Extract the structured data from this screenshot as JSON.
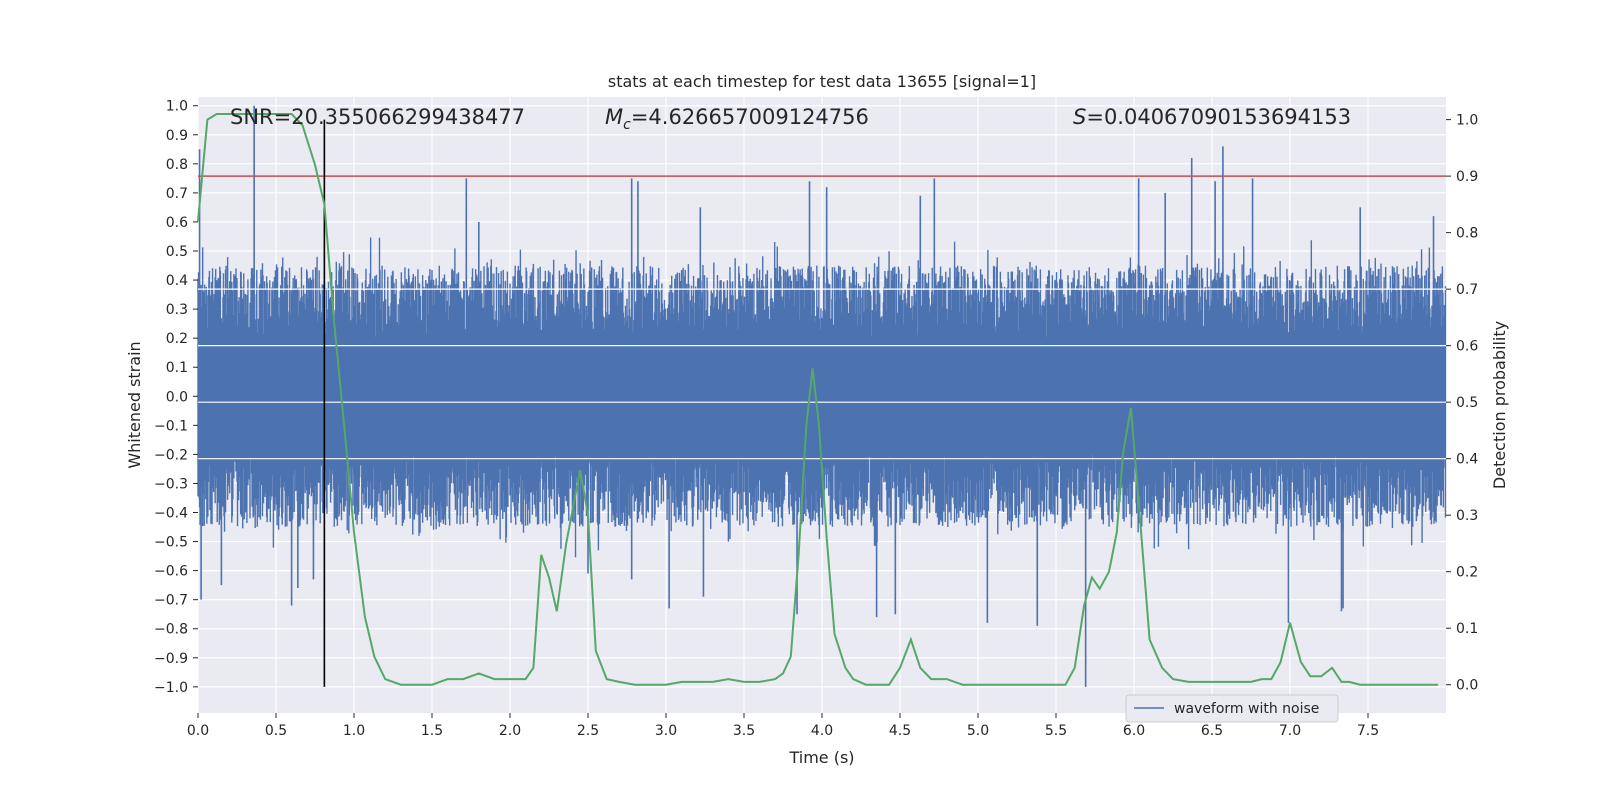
{
  "chart_data": {
    "type": "line",
    "title": "stats at each timestep for test data 13655 [signal=1]",
    "xlabel": "Time (s)",
    "ylabel_left": "Whitened strain",
    "ylabel_right": "Detection probability",
    "xlim": [
      0,
      8
    ],
    "ylim_left": [
      -1.09,
      1.03
    ],
    "ylim_right": [
      -0.05,
      1.04
    ],
    "x_ticks": [
      0.0,
      0.5,
      1.0,
      1.5,
      2.0,
      2.5,
      3.0,
      3.5,
      4.0,
      4.5,
      5.0,
      5.5,
      6.0,
      6.5,
      7.0,
      7.5
    ],
    "x_tick_labels": [
      "0.0",
      "0.5",
      "1.0",
      "1.5",
      "2.0",
      "2.5",
      "3.0",
      "3.5",
      "4.0",
      "4.5",
      "5.0",
      "5.5",
      "6.0",
      "6.5",
      "7.0",
      "7.5"
    ],
    "y_left_ticks": [
      1.0,
      0.9,
      0.8,
      0.7,
      0.6,
      0.5,
      0.4,
      0.3,
      0.2,
      0.1,
      0.0,
      -0.1,
      -0.2,
      -0.3,
      -0.4,
      -0.5,
      -0.6,
      -0.7,
      -0.8,
      -0.9,
      -1.0
    ],
    "y_left_tick_labels": [
      "1.0",
      "0.9",
      "0.8",
      "0.7",
      "0.6",
      "0.5",
      "0.4",
      "0.3",
      "0.2",
      "0.1",
      "0.0",
      "−0.1",
      "−0.2",
      "−0.3",
      "−0.4",
      "−0.5",
      "−0.6",
      "−0.7",
      "−0.8",
      "−0.9",
      "−1.0"
    ],
    "y_right_ticks": [
      1.0,
      0.9,
      0.8,
      0.7,
      0.6,
      0.5,
      0.4,
      0.3,
      0.2,
      0.1,
      0.0
    ],
    "y_right_tick_labels": [
      "1.0",
      "0.9",
      "0.8",
      "0.7",
      "0.6",
      "0.5",
      "0.4",
      "0.3",
      "0.2",
      "0.1",
      "0.0"
    ],
    "grid": true,
    "legend": {
      "position": "lower-right",
      "entries": [
        "waveform with noise"
      ]
    },
    "annotations": {
      "snr": "SNR=20.355066299438477",
      "mc_symbol": "M",
      "mc_sub": "c",
      "mc_value": "=4.626657009124756",
      "s_symbol": "S",
      "s_value": "=0.04067090153694153"
    },
    "threshold": {
      "value": 0.9,
      "axis": "right",
      "color": "#c44e52"
    },
    "event_marker": {
      "x": 0.81,
      "color": "#000000"
    },
    "waveform": {
      "name": "waveform with noise",
      "color": "#4c72b0",
      "envelope_pos": 0.45,
      "envelope_neg": -0.45,
      "spikes": [
        {
          "x": 0.01,
          "y": 0.85
        },
        {
          "x": 0.02,
          "y": -0.7
        },
        {
          "x": 0.36,
          "y": 1.0
        },
        {
          "x": 0.15,
          "y": -0.65
        },
        {
          "x": 0.6,
          "y": -0.72
        },
        {
          "x": 0.64,
          "y": -0.66
        },
        {
          "x": 0.74,
          "y": -0.63
        },
        {
          "x": 1.72,
          "y": 0.75
        },
        {
          "x": 1.8,
          "y": 0.6
        },
        {
          "x": 2.5,
          "y": -0.61
        },
        {
          "x": 2.78,
          "y": 0.75
        },
        {
          "x": 2.82,
          "y": 0.74
        },
        {
          "x": 2.78,
          "y": -0.63
        },
        {
          "x": 3.02,
          "y": -0.73
        },
        {
          "x": 3.22,
          "y": 0.65
        },
        {
          "x": 3.24,
          "y": -0.69
        },
        {
          "x": 3.92,
          "y": 0.74
        },
        {
          "x": 3.84,
          "y": -0.75
        },
        {
          "x": 4.03,
          "y": 0.72
        },
        {
          "x": 4.35,
          "y": -0.76
        },
        {
          "x": 4.47,
          "y": -0.75
        },
        {
          "x": 4.72,
          "y": 0.75
        },
        {
          "x": 4.63,
          "y": 0.69
        },
        {
          "x": 5.06,
          "y": -0.78
        },
        {
          "x": 5.38,
          "y": -0.79
        },
        {
          "x": 5.69,
          "y": -1.0
        },
        {
          "x": 6.03,
          "y": 0.75
        },
        {
          "x": 6.37,
          "y": 0.82
        },
        {
          "x": 6.57,
          "y": 0.86
        },
        {
          "x": 6.76,
          "y": 0.75
        },
        {
          "x": 6.99,
          "y": -0.78
        },
        {
          "x": 7.33,
          "y": -0.74
        },
        {
          "x": 7.34,
          "y": -0.73
        },
        {
          "x": 7.45,
          "y": 0.65
        },
        {
          "x": 7.92,
          "y": 0.62
        },
        {
          "x": 6.52,
          "y": 0.74
        },
        {
          "x": 6.2,
          "y": 0.7
        }
      ]
    },
    "probability": {
      "color": "#55a868",
      "x": [
        0.0,
        0.06,
        0.12,
        0.2,
        0.3,
        0.4,
        0.5,
        0.6,
        0.67,
        0.75,
        0.81,
        0.87,
        0.94,
        1.0,
        1.07,
        1.13,
        1.2,
        1.3,
        1.5,
        1.6,
        1.7,
        1.8,
        1.9,
        2.0,
        2.1,
        2.15,
        2.2,
        2.25,
        2.3,
        2.36,
        2.45,
        2.5,
        2.55,
        2.62,
        2.7,
        2.8,
        2.9,
        3.0,
        3.1,
        3.2,
        3.3,
        3.4,
        3.5,
        3.6,
        3.7,
        3.75,
        3.8,
        3.85,
        3.9,
        3.94,
        3.98,
        4.03,
        4.08,
        4.15,
        4.2,
        4.28,
        4.35,
        4.43,
        4.5,
        4.57,
        4.63,
        4.7,
        4.8,
        4.9,
        5.0,
        5.1,
        5.2,
        5.3,
        5.4,
        5.5,
        5.56,
        5.62,
        5.68,
        5.73,
        5.78,
        5.84,
        5.89,
        5.93,
        5.98,
        6.04,
        6.1,
        6.18,
        6.25,
        6.35,
        6.45,
        6.55,
        6.65,
        6.75,
        6.82,
        6.88,
        6.94,
        7.0,
        7.07,
        7.13,
        7.2,
        7.27,
        7.33,
        7.38,
        7.45,
        7.55,
        7.7,
        7.8,
        7.95
      ],
      "y": [
        0.82,
        1.0,
        1.01,
        1.01,
        1.01,
        1.01,
        1.01,
        1.01,
        0.99,
        0.92,
        0.85,
        0.65,
        0.45,
        0.27,
        0.12,
        0.05,
        0.01,
        0.0,
        0.0,
        0.01,
        0.01,
        0.02,
        0.01,
        0.01,
        0.01,
        0.03,
        0.23,
        0.19,
        0.13,
        0.25,
        0.38,
        0.3,
        0.06,
        0.01,
        0.005,
        0.0,
        0.0,
        0.0,
        0.005,
        0.005,
        0.005,
        0.01,
        0.005,
        0.005,
        0.01,
        0.02,
        0.05,
        0.23,
        0.46,
        0.56,
        0.46,
        0.26,
        0.09,
        0.03,
        0.01,
        0.0,
        0.0,
        0.0,
        0.03,
        0.08,
        0.03,
        0.01,
        0.01,
        0.0,
        0.0,
        0.0,
        0.0,
        0.0,
        0.0,
        0.0,
        0.0,
        0.03,
        0.14,
        0.19,
        0.17,
        0.2,
        0.27,
        0.41,
        0.49,
        0.29,
        0.08,
        0.03,
        0.01,
        0.005,
        0.005,
        0.005,
        0.005,
        0.005,
        0.01,
        0.01,
        0.04,
        0.11,
        0.04,
        0.015,
        0.015,
        0.03,
        0.005,
        0.005,
        0.0,
        0.0,
        0.0,
        0.0,
        0.0
      ]
    }
  }
}
